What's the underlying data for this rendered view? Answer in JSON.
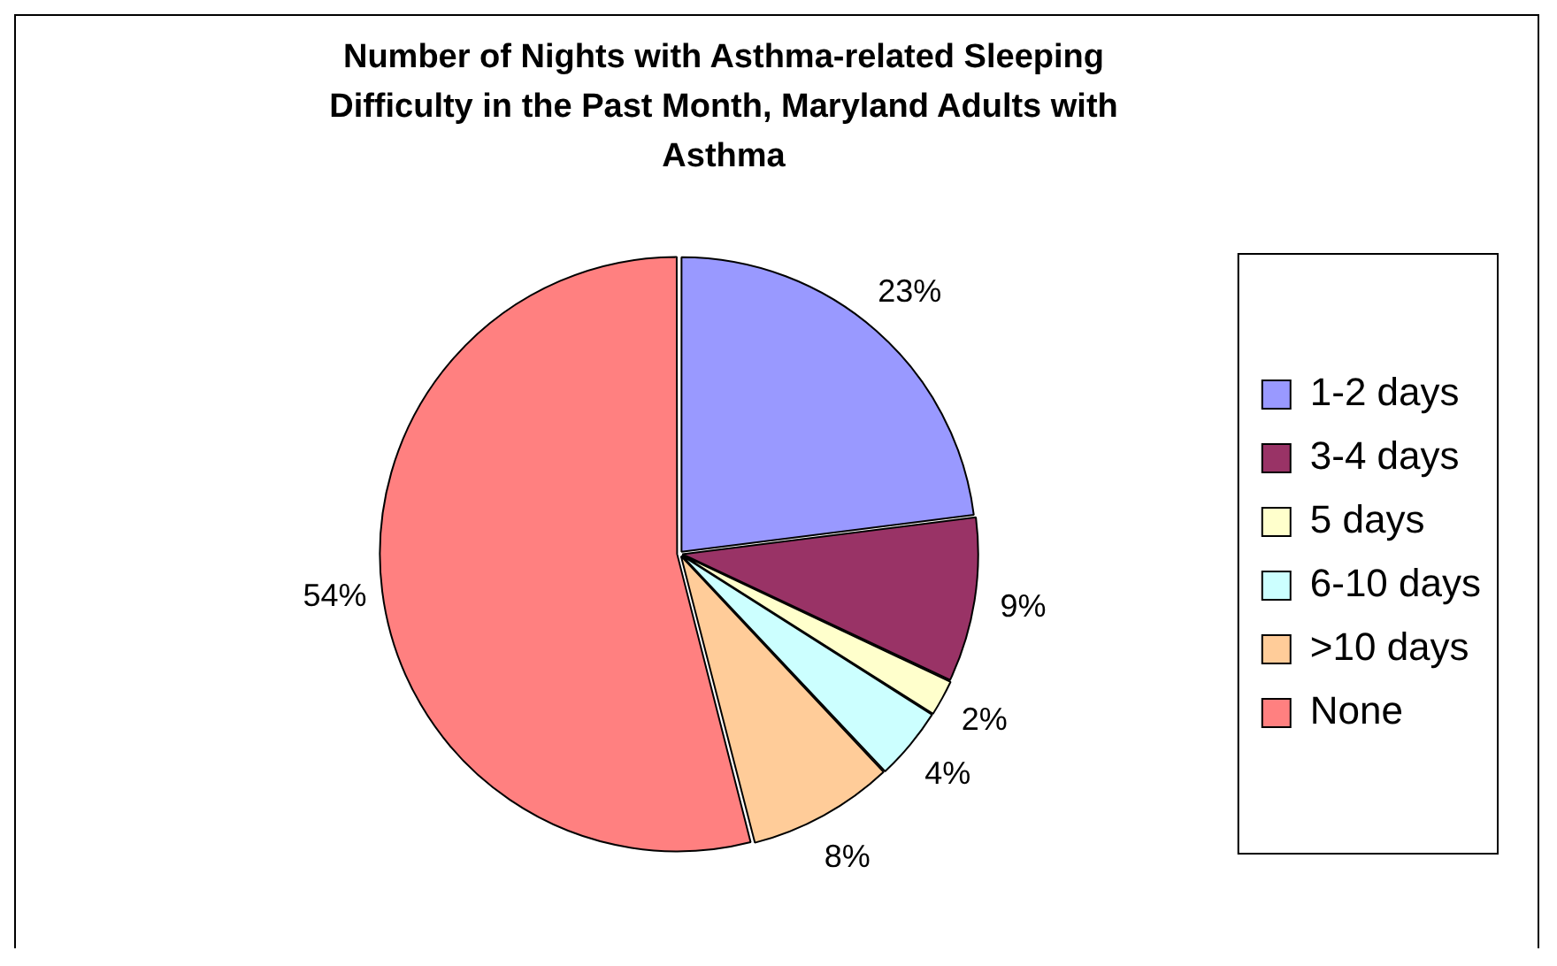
{
  "chart_data": {
    "type": "pie",
    "title": "Number of Nights with Asthma-related Sleeping Difficulty in the Past Month, Maryland Adults with Asthma",
    "categories": [
      "1-2 days",
      "3-4 days",
      "5 days",
      "6-10 days",
      ">10 days",
      "None"
    ],
    "values": [
      23,
      9,
      2,
      4,
      8,
      54
    ],
    "colors": [
      "#9999ff",
      "#993366",
      "#ffffcc",
      "#ccffff",
      "#ffcc99",
      "#ff8080"
    ],
    "value_labels": [
      "23%",
      "9%",
      "2%",
      "4%",
      "8%",
      "54%"
    ],
    "legend": "right"
  }
}
